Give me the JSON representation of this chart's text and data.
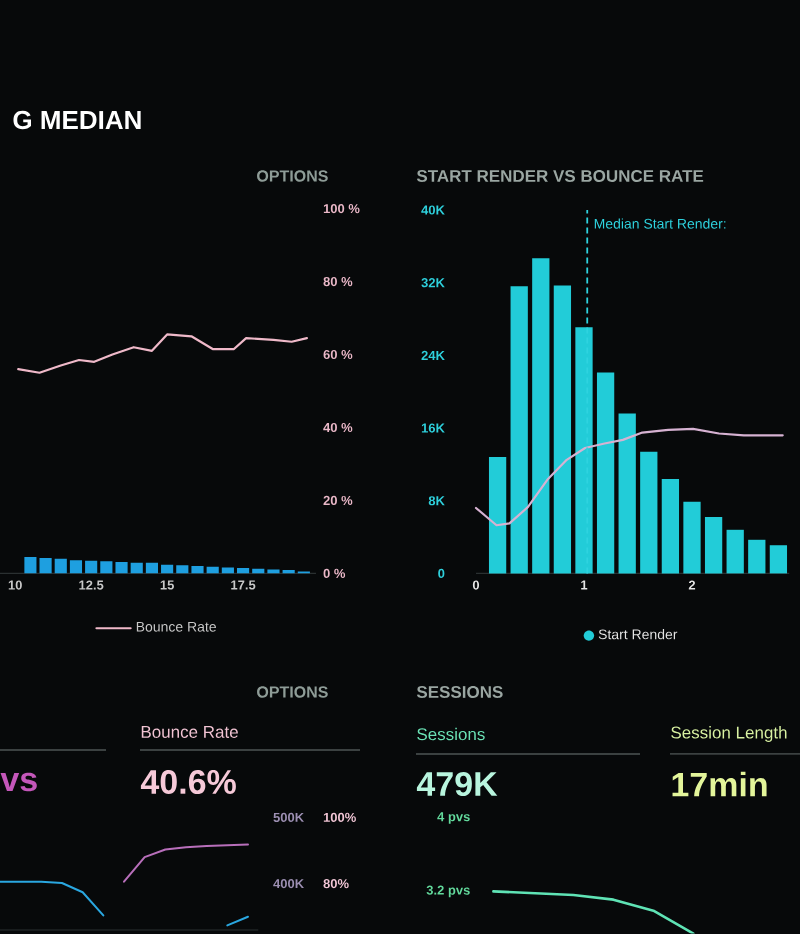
{
  "chart_data": [
    {
      "type": "bar",
      "title": "G MEDIAN",
      "annotations": [
        "OPTIONS"
      ],
      "x": [
        10.5,
        11,
        11.5,
        12,
        12.5,
        13,
        13.5,
        14,
        14.5,
        15,
        15.5,
        16,
        16.5,
        17,
        17.5,
        18,
        18.5,
        19,
        19.5
      ],
      "xlim": [
        9.5,
        19.9
      ],
      "xticks": [
        10,
        12.5,
        15,
        17.5
      ],
      "ylim": [
        0,
        100
      ],
      "yticks": [
        {
          "value": 0,
          "label": "0 %"
        },
        {
          "value": 20,
          "label": "20 %"
        },
        {
          "value": 40,
          "label": "40 %"
        },
        {
          "value": 60,
          "label": "60 %"
        },
        {
          "value": 80,
          "label": "80 %"
        },
        {
          "value": 100,
          "label": "100 %"
        }
      ],
      "series": [
        {
          "type": "bar",
          "color": "#1e9fe0",
          "values": [
            4.5,
            4.2,
            4.0,
            3.6,
            3.5,
            3.3,
            3.1,
            2.9,
            2.9,
            2.4,
            2.2,
            2.0,
            1.8,
            1.6,
            1.5,
            1.3,
            1.1,
            0.9,
            0.5
          ]
        },
        {
          "type": "line",
          "name": "Bounce Rate",
          "color": "#efb9c9",
          "x": [
            10.1,
            10.8,
            11.5,
            12.1,
            12.6,
            13.2,
            13.9,
            14.5,
            15,
            15.8,
            16.5,
            17.2,
            17.6,
            18.5,
            19.1,
            19.6
          ],
          "values": [
            56,
            55,
            57,
            58.5,
            58,
            60,
            62,
            61,
            65.5,
            65,
            61.5,
            61.5,
            64.5,
            64,
            63.5,
            64.5
          ]
        }
      ],
      "legend": "bottom"
    },
    {
      "type": "bar",
      "title": "START RENDER VS BOUNCE RATE",
      "x": [
        0.2,
        0.4,
        0.6,
        0.8,
        1.0,
        1.2,
        1.4,
        1.6,
        1.8,
        2.0,
        2.2,
        2.4,
        2.6,
        2.8
      ],
      "xlim": [
        0,
        2.9
      ],
      "xticks": [
        0,
        1,
        2
      ],
      "ylim": [
        0,
        40000
      ],
      "yticks": [
        0,
        {
          "value": 8000,
          "label": "8K"
        },
        {
          "value": 16000,
          "label": "16K"
        },
        {
          "value": 24000,
          "label": "24K"
        },
        {
          "value": 32000,
          "label": "32K"
        },
        {
          "value": 40000,
          "label": "40K"
        }
      ],
      "series": [
        {
          "type": "bar",
          "name": "Start Render",
          "color": "#22ccd8",
          "values": [
            12800,
            31600,
            34700,
            31700,
            27100,
            22100,
            17600,
            13400,
            10400,
            7900,
            6200,
            4800,
            3700,
            3100
          ]
        },
        {
          "type": "line",
          "color": "#d6b2d2",
          "x": [
            0,
            0.19,
            0.31,
            0.48,
            0.66,
            0.84,
            1.01,
            1.19,
            1.36,
            1.54,
            1.78,
            2.01,
            2.25,
            2.48,
            2.84
          ],
          "values": [
            7200,
            5300,
            5500,
            7300,
            10300,
            12500,
            13800,
            14300,
            14700,
            15500,
            15800,
            15900,
            15400,
            15200,
            15200
          ]
        }
      ],
      "ref_lines": [
        {
          "axis": "x",
          "value": 1.03,
          "label": "Median Start Render:",
          "color": "#2ed3df",
          "line_style": "dashed"
        }
      ],
      "legend": "bottom"
    },
    {
      "type": "line",
      "annotations": [
        "OPTIONS",
        "vs",
        "Bounce Rate",
        "40.6%"
      ],
      "categories": [
        null,
        null,
        null,
        null,
        null,
        null,
        null,
        null,
        null,
        null,
        null,
        null,
        null
      ],
      "ylim": [
        330000,
        500000
      ],
      "yticks": [
        {
          "value": 400000,
          "label": "400K"
        },
        {
          "value": 500000,
          "label": "500K"
        }
      ],
      "y2lim": [
        66,
        100
      ],
      "y2ticks": [
        {
          "value": 80,
          "label": "80%"
        },
        {
          "value": 100,
          "label": "100%"
        }
      ],
      "series": [
        {
          "color": "#2aa7e0",
          "values": [
            403000,
            403000,
            403000,
            401000,
            387000,
            352000,
            null,
            null,
            null,
            null,
            null,
            null,
            null
          ]
        },
        {
          "color": "#b86fbb",
          "axis": "y2",
          "values": [
            null,
            null,
            null,
            null,
            null,
            null,
            80.6,
            88,
            90.3,
            91,
            91.4,
            91.6,
            91.8
          ]
        },
        {
          "color": "#2aa7e0",
          "values": [
            null,
            null,
            null,
            null,
            null,
            null,
            null,
            null,
            null,
            null,
            null,
            337000,
            350000
          ]
        }
      ]
    },
    {
      "type": "line",
      "title": "SESSIONS",
      "annotations": [
        "Sessions",
        "479K",
        "Session Length",
        "17min"
      ],
      "categories": [
        null,
        null,
        null,
        null,
        null,
        null
      ],
      "ylim": [
        2.74,
        4
      ],
      "yticks": [
        {
          "value": 3.2,
          "label": "3.2 pvs"
        },
        {
          "value": 4,
          "label": "4 pvs"
        }
      ],
      "series": [
        {
          "color": "#5fe3b5",
          "values": [
            3.2,
            3.18,
            3.16,
            3.11,
            2.99,
            2.74
          ]
        }
      ]
    }
  ]
}
